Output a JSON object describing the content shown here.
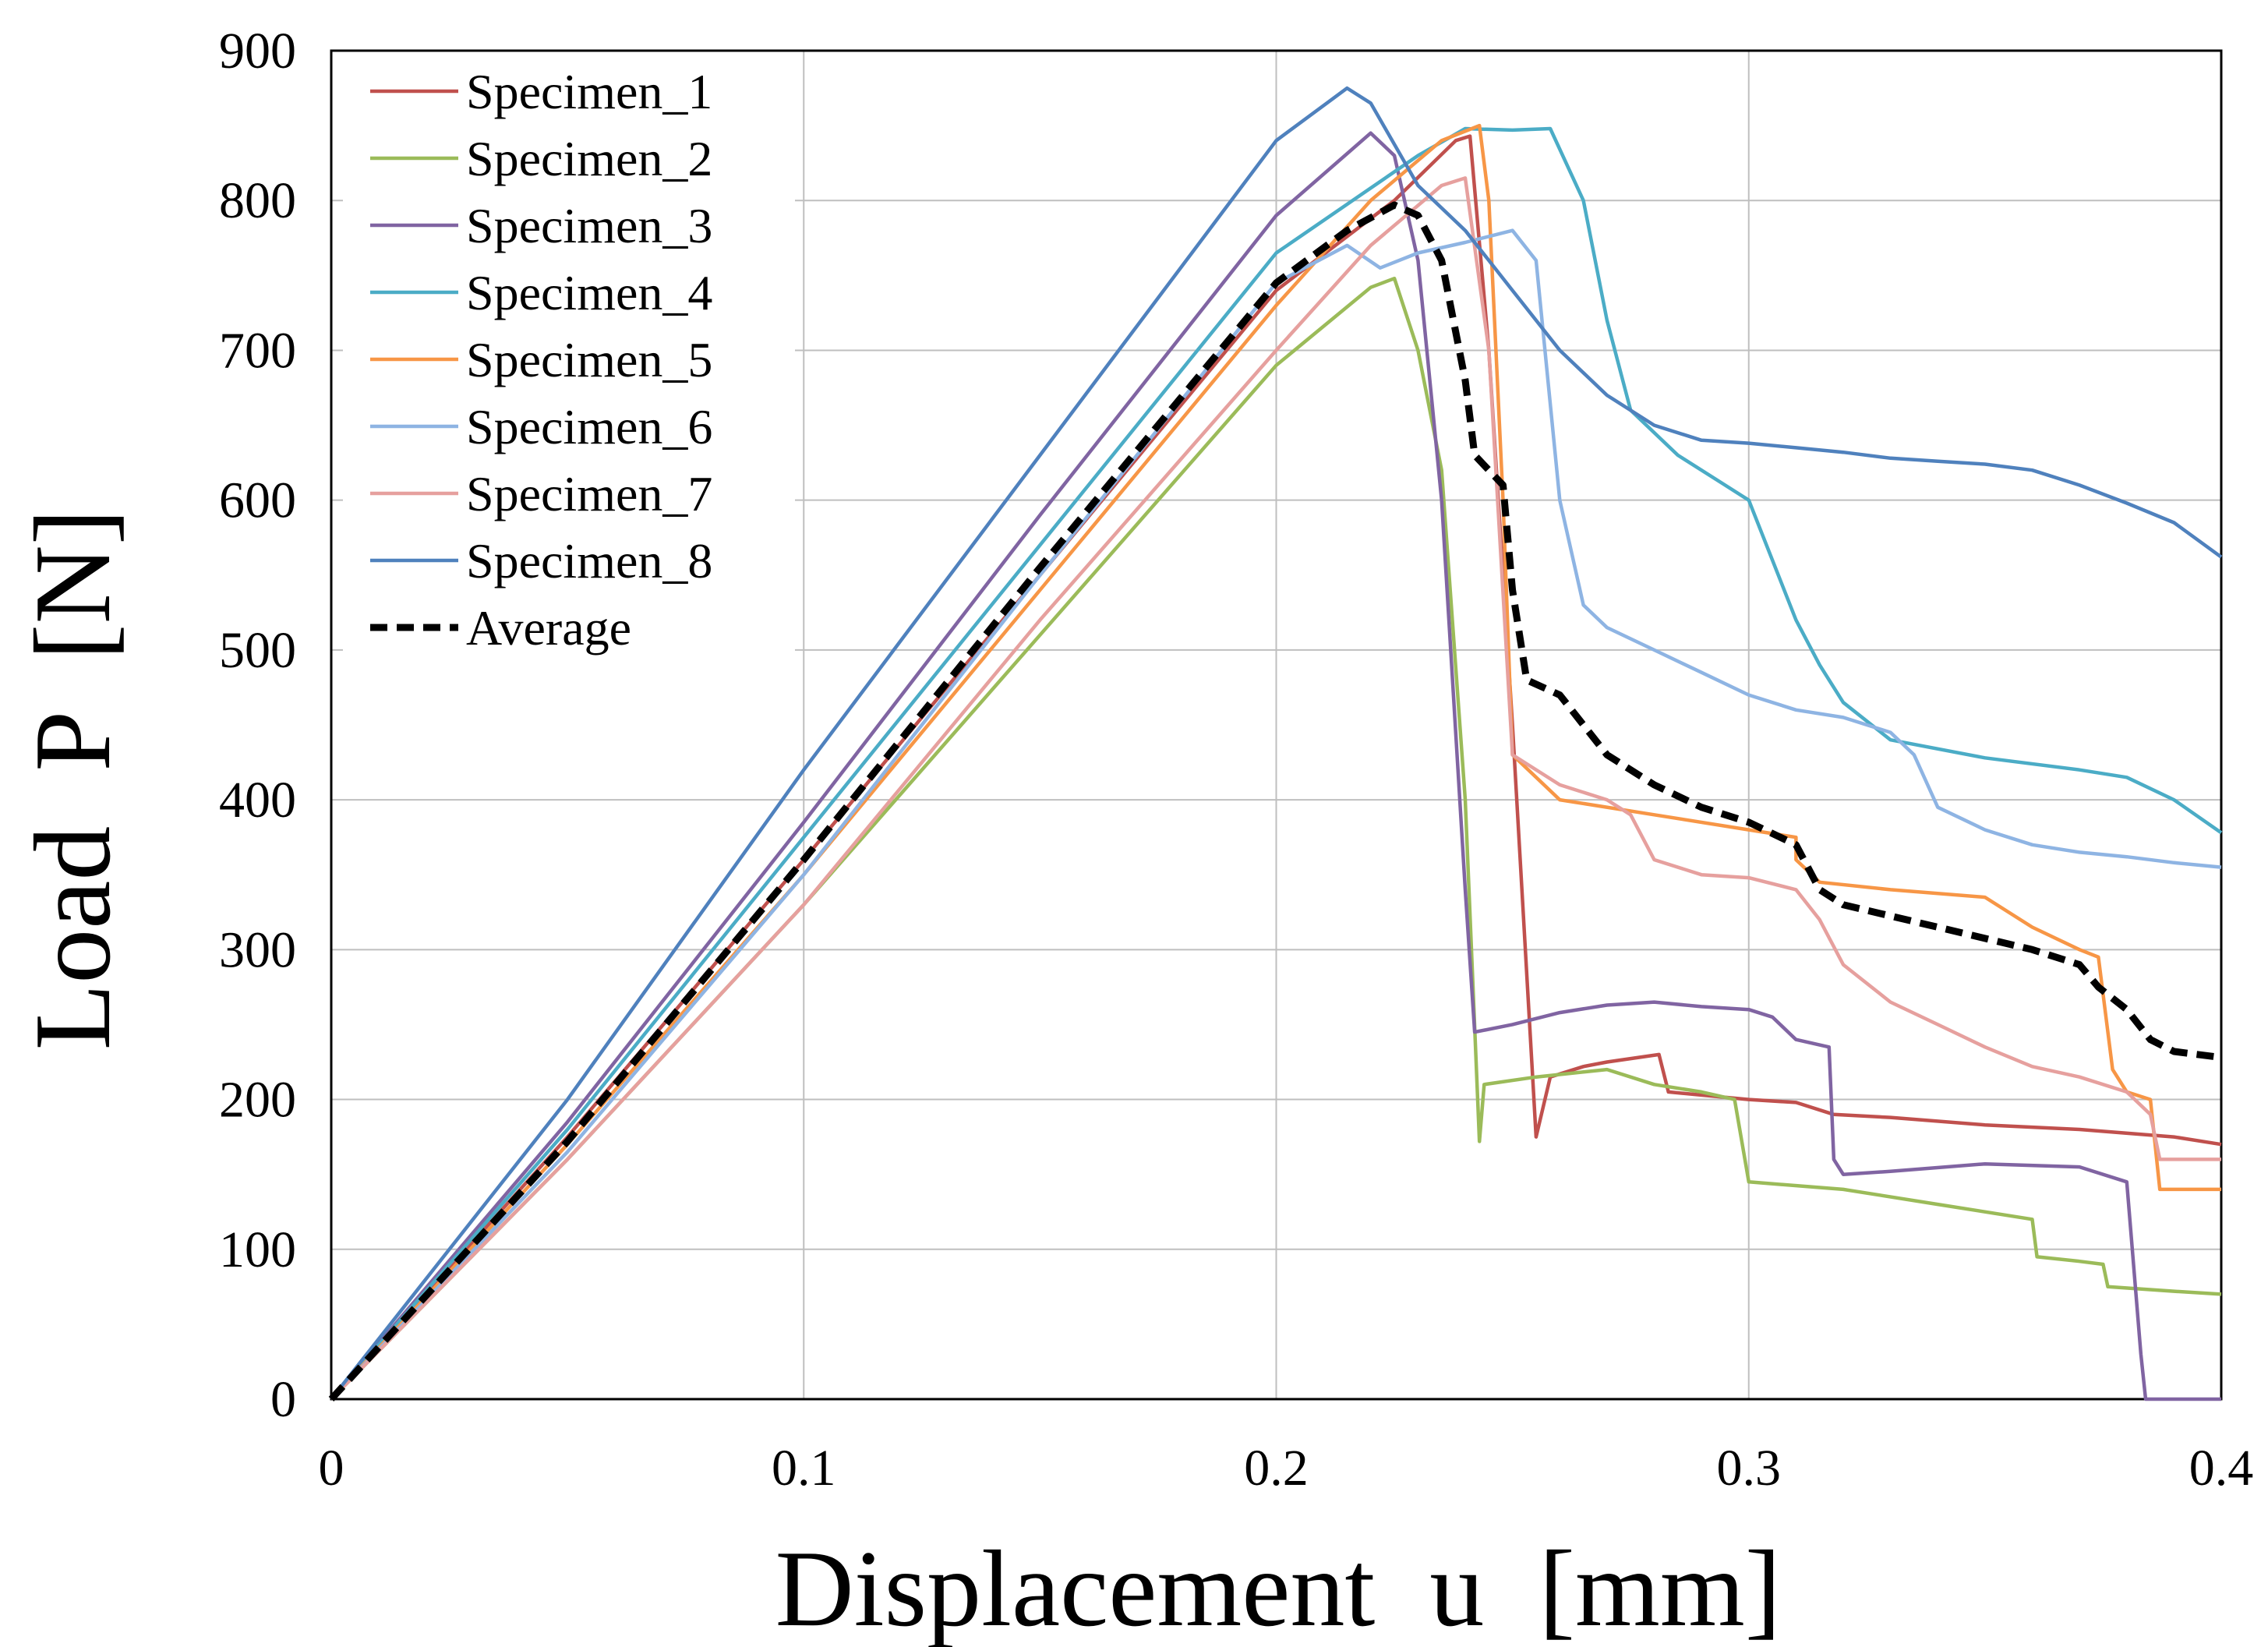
{
  "chart_data": {
    "type": "line",
    "title": "",
    "xlabel": "Displacement  u  [mm]",
    "ylabel": "Load  P  [N]",
    "xlim": [
      0,
      0.4
    ],
    "ylim": [
      0,
      900
    ],
    "x_ticks": [
      0,
      0.1,
      0.2,
      0.3,
      0.4
    ],
    "x_tick_labels": [
      "0",
      "0.1",
      "0.2",
      "0.3",
      "0.4"
    ],
    "y_ticks": [
      0,
      100,
      200,
      300,
      400,
      500,
      600,
      700,
      800,
      900
    ],
    "y_tick_labels": [
      "0",
      "100",
      "200",
      "300",
      "400",
      "500",
      "600",
      "700",
      "800",
      "900"
    ],
    "grid": true,
    "legend_position": "top-left",
    "series": [
      {
        "name": "Specimen_1",
        "color": "#c0504d",
        "dashed": false,
        "points": [
          [
            0,
            0
          ],
          [
            0.05,
            175
          ],
          [
            0.1,
            360
          ],
          [
            0.15,
            550
          ],
          [
            0.2,
            740
          ],
          [
            0.225,
            800
          ],
          [
            0.238,
            840
          ],
          [
            0.241,
            843
          ],
          [
            0.245,
            700
          ],
          [
            0.25,
            450
          ],
          [
            0.255,
            175
          ],
          [
            0.258,
            215
          ],
          [
            0.265,
            222
          ],
          [
            0.27,
            225
          ],
          [
            0.281,
            230
          ],
          [
            0.283,
            205
          ],
          [
            0.3,
            200
          ],
          [
            0.31,
            198
          ],
          [
            0.318,
            190
          ],
          [
            0.33,
            188
          ],
          [
            0.35,
            183
          ],
          [
            0.37,
            180
          ],
          [
            0.39,
            175
          ],
          [
            0.4,
            170
          ]
        ]
      },
      {
        "name": "Specimen_2",
        "color": "#9bbb59",
        "dashed": false,
        "points": [
          [
            0,
            0
          ],
          [
            0.05,
            160
          ],
          [
            0.1,
            330
          ],
          [
            0.15,
            510
          ],
          [
            0.2,
            690
          ],
          [
            0.22,
            742
          ],
          [
            0.225,
            748
          ],
          [
            0.23,
            700
          ],
          [
            0.235,
            620
          ],
          [
            0.24,
            400
          ],
          [
            0.243,
            172
          ],
          [
            0.244,
            210
          ],
          [
            0.255,
            215
          ],
          [
            0.27,
            220
          ],
          [
            0.28,
            210
          ],
          [
            0.29,
            205
          ],
          [
            0.297,
            200
          ],
          [
            0.3,
            145
          ],
          [
            0.32,
            140
          ],
          [
            0.34,
            130
          ],
          [
            0.36,
            120
          ],
          [
            0.361,
            95
          ],
          [
            0.37,
            92
          ],
          [
            0.375,
            90
          ],
          [
            0.376,
            75
          ],
          [
            0.39,
            72
          ],
          [
            0.4,
            70
          ]
        ]
      },
      {
        "name": "Specimen_3",
        "color": "#8064a2",
        "dashed": false,
        "points": [
          [
            0,
            0
          ],
          [
            0.05,
            185
          ],
          [
            0.1,
            385
          ],
          [
            0.15,
            590
          ],
          [
            0.2,
            790
          ],
          [
            0.22,
            845
          ],
          [
            0.225,
            830
          ],
          [
            0.23,
            760
          ],
          [
            0.235,
            600
          ],
          [
            0.24,
            340
          ],
          [
            0.242,
            245
          ],
          [
            0.25,
            250
          ],
          [
            0.26,
            258
          ],
          [
            0.27,
            263
          ],
          [
            0.28,
            265
          ],
          [
            0.29,
            262
          ],
          [
            0.3,
            260
          ],
          [
            0.305,
            255
          ],
          [
            0.31,
            240
          ],
          [
            0.317,
            235
          ],
          [
            0.318,
            160
          ],
          [
            0.32,
            150
          ],
          [
            0.33,
            152
          ],
          [
            0.35,
            157
          ],
          [
            0.37,
            155
          ],
          [
            0.38,
            145
          ],
          [
            0.383,
            30
          ],
          [
            0.384,
            0
          ],
          [
            0.4,
            0
          ]
        ]
      },
      {
        "name": "Specimen_4",
        "color": "#4bacc6",
        "dashed": false,
        "points": [
          [
            0,
            0
          ],
          [
            0.05,
            180
          ],
          [
            0.1,
            375
          ],
          [
            0.15,
            570
          ],
          [
            0.2,
            765
          ],
          [
            0.23,
            830
          ],
          [
            0.24,
            848
          ],
          [
            0.25,
            847
          ],
          [
            0.258,
            848
          ],
          [
            0.265,
            800
          ],
          [
            0.27,
            720
          ],
          [
            0.275,
            660
          ],
          [
            0.285,
            630
          ],
          [
            0.295,
            610
          ],
          [
            0.3,
            600
          ],
          [
            0.305,
            560
          ],
          [
            0.31,
            520
          ],
          [
            0.315,
            490
          ],
          [
            0.32,
            465
          ],
          [
            0.33,
            440
          ],
          [
            0.35,
            428
          ],
          [
            0.37,
            420
          ],
          [
            0.38,
            415
          ],
          [
            0.39,
            400
          ],
          [
            0.4,
            378
          ]
        ]
      },
      {
        "name": "Specimen_5",
        "color": "#f79646",
        "dashed": false,
        "points": [
          [
            0,
            0
          ],
          [
            0.05,
            170
          ],
          [
            0.1,
            350
          ],
          [
            0.15,
            540
          ],
          [
            0.2,
            730
          ],
          [
            0.22,
            800
          ],
          [
            0.235,
            840
          ],
          [
            0.243,
            850
          ],
          [
            0.245,
            800
          ],
          [
            0.248,
            600
          ],
          [
            0.25,
            430
          ],
          [
            0.26,
            400
          ],
          [
            0.28,
            390
          ],
          [
            0.3,
            380
          ],
          [
            0.31,
            375
          ],
          [
            0.31,
            360
          ],
          [
            0.315,
            345
          ],
          [
            0.33,
            340
          ],
          [
            0.35,
            335
          ],
          [
            0.36,
            315
          ],
          [
            0.37,
            300
          ],
          [
            0.374,
            295
          ],
          [
            0.377,
            220
          ],
          [
            0.38,
            205
          ],
          [
            0.385,
            200
          ],
          [
            0.387,
            140
          ],
          [
            0.4,
            140
          ]
        ]
      },
      {
        "name": "Specimen_6",
        "color": "#8eb4e3",
        "dashed": false,
        "points": [
          [
            0,
            0
          ],
          [
            0.05,
            165
          ],
          [
            0.1,
            350
          ],
          [
            0.15,
            550
          ],
          [
            0.2,
            745
          ],
          [
            0.215,
            770
          ],
          [
            0.222,
            755
          ],
          [
            0.23,
            765
          ],
          [
            0.24,
            772
          ],
          [
            0.25,
            780
          ],
          [
            0.255,
            760
          ],
          [
            0.26,
            600
          ],
          [
            0.265,
            530
          ],
          [
            0.27,
            515
          ],
          [
            0.28,
            500
          ],
          [
            0.29,
            485
          ],
          [
            0.3,
            470
          ],
          [
            0.31,
            460
          ],
          [
            0.32,
            455
          ],
          [
            0.33,
            445
          ],
          [
            0.335,
            430
          ],
          [
            0.34,
            395
          ],
          [
            0.35,
            380
          ],
          [
            0.36,
            370
          ],
          [
            0.37,
            365
          ],
          [
            0.38,
            362
          ],
          [
            0.39,
            358
          ],
          [
            0.4,
            355
          ]
        ]
      },
      {
        "name": "Specimen_7",
        "color": "#e6a09e",
        "dashed": false,
        "points": [
          [
            0,
            0
          ],
          [
            0.05,
            160
          ],
          [
            0.1,
            330
          ],
          [
            0.15,
            520
          ],
          [
            0.2,
            700
          ],
          [
            0.22,
            770
          ],
          [
            0.235,
            810
          ],
          [
            0.24,
            815
          ],
          [
            0.245,
            700
          ],
          [
            0.25,
            430
          ],
          [
            0.26,
            410
          ],
          [
            0.27,
            400
          ],
          [
            0.275,
            390
          ],
          [
            0.28,
            360
          ],
          [
            0.29,
            350
          ],
          [
            0.3,
            348
          ],
          [
            0.31,
            340
          ],
          [
            0.315,
            320
          ],
          [
            0.32,
            290
          ],
          [
            0.33,
            265
          ],
          [
            0.34,
            250
          ],
          [
            0.35,
            235
          ],
          [
            0.36,
            222
          ],
          [
            0.37,
            215
          ],
          [
            0.38,
            205
          ],
          [
            0.385,
            190
          ],
          [
            0.387,
            160
          ],
          [
            0.4,
            160
          ]
        ]
      },
      {
        "name": "Specimen_8",
        "color": "#4f81bd",
        "dashed": false,
        "points": [
          [
            0,
            0
          ],
          [
            0.05,
            200
          ],
          [
            0.1,
            420
          ],
          [
            0.15,
            630
          ],
          [
            0.2,
            840
          ],
          [
            0.215,
            875
          ],
          [
            0.22,
            865
          ],
          [
            0.23,
            810
          ],
          [
            0.24,
            780
          ],
          [
            0.25,
            740
          ],
          [
            0.26,
            700
          ],
          [
            0.27,
            670
          ],
          [
            0.28,
            650
          ],
          [
            0.29,
            640
          ],
          [
            0.3,
            638
          ],
          [
            0.31,
            635
          ],
          [
            0.32,
            632
          ],
          [
            0.33,
            628
          ],
          [
            0.34,
            626
          ],
          [
            0.35,
            624
          ],
          [
            0.36,
            620
          ],
          [
            0.37,
            610
          ],
          [
            0.38,
            598
          ],
          [
            0.39,
            585
          ],
          [
            0.4,
            562
          ]
        ]
      },
      {
        "name": "Average",
        "color": "#000000",
        "dashed": true,
        "points": [
          [
            0,
            0
          ],
          [
            0.05,
            172
          ],
          [
            0.1,
            360
          ],
          [
            0.15,
            555
          ],
          [
            0.2,
            745
          ],
          [
            0.215,
            780
          ],
          [
            0.225,
            797
          ],
          [
            0.23,
            790
          ],
          [
            0.235,
            760
          ],
          [
            0.24,
            680
          ],
          [
            0.242,
            630
          ],
          [
            0.248,
            610
          ],
          [
            0.25,
            540
          ],
          [
            0.253,
            480
          ],
          [
            0.26,
            470
          ],
          [
            0.27,
            430
          ],
          [
            0.28,
            410
          ],
          [
            0.29,
            395
          ],
          [
            0.3,
            385
          ],
          [
            0.31,
            370
          ],
          [
            0.315,
            340
          ],
          [
            0.32,
            330
          ],
          [
            0.34,
            315
          ],
          [
            0.36,
            300
          ],
          [
            0.37,
            290
          ],
          [
            0.374,
            275
          ],
          [
            0.38,
            260
          ],
          [
            0.385,
            240
          ],
          [
            0.39,
            232
          ],
          [
            0.4,
            228
          ]
        ]
      }
    ]
  }
}
